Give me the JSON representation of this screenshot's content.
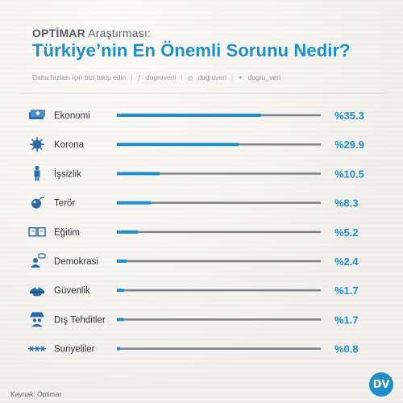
{
  "header": {
    "brand": "OPTİMAR",
    "subtitle_rest": " Araştırması:",
    "title": "Türkiye’nin En Önemli Sorunu Nedir?"
  },
  "follow": {
    "text": "Daha fazlası için bizi takip edin",
    "facebook": "dogruverii",
    "instagram": "dogruveri",
    "twitter": "dogru_veri"
  },
  "footer": {
    "source": "Kaynak: Optimar"
  },
  "logo": {
    "text": "DV"
  },
  "colors": {
    "accent": "#1f8fc9",
    "track": "#7d8287",
    "text": "#2d3137",
    "icon": "#2a6aa8"
  },
  "chart_data": {
    "type": "bar",
    "orientation": "horizontal",
    "categories": [
      "Ekonomi",
      "Korona",
      "İşsizlik",
      "Terör",
      "Eğitim",
      "Demokrasi",
      "Güvenlik",
      "Dış Tehditler",
      "Suriyeliler"
    ],
    "values": [
      35.3,
      29.9,
      10.5,
      8.3,
      5.2,
      2.4,
      1.7,
      1.7,
      0.8
    ],
    "value_labels": [
      "%35.3",
      "%29.9",
      "%10.5",
      "%8.3",
      "%5.2",
      "%2.4",
      "%1.7",
      "%1.7",
      "%0.8"
    ],
    "icons": [
      "money-icon",
      "virus-icon",
      "person-icon",
      "bomb-icon",
      "book-icon",
      "speech-person-icon",
      "police-cap-icon",
      "spy-icon",
      "barbed-wire-icon"
    ],
    "xlim": [
      0,
      50
    ],
    "grid": false,
    "legend": "none"
  }
}
